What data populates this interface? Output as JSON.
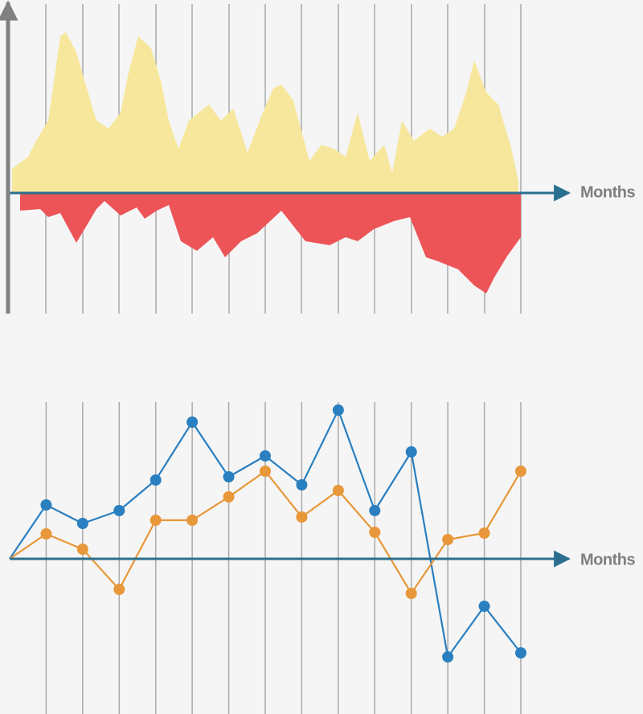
{
  "chart_data": [
    {
      "type": "area",
      "x_label": "Months",
      "xlim": [
        0,
        636
      ],
      "ylim": [
        -150,
        235
      ],
      "xticks": [
        45,
        91,
        136,
        182,
        227,
        273,
        318,
        363,
        409,
        454,
        500,
        545,
        591,
        636
      ],
      "series": [
        {
          "color": "#f7e79d",
          "x": [
            3,
            23,
            33,
            48,
            63,
            70,
            83,
            93,
            108,
            123,
            138,
            148,
            160,
            176,
            188,
            198,
            210,
            223,
            248,
            263,
            278,
            296,
            313,
            328,
            338,
            353,
            373,
            388,
            403,
            418,
            433,
            448,
            466,
            476,
            488,
            503,
            523,
            538,
            553,
            568,
            578,
            593,
            608,
            623,
            633
          ],
          "values": [
            30,
            45,
            65,
            90,
            195,
            200,
            175,
            140,
            90,
            80,
            100,
            150,
            195,
            180,
            140,
            90,
            55,
            90,
            110,
            90,
            105,
            50,
            95,
            130,
            135,
            115,
            40,
            60,
            55,
            45,
            100,
            40,
            60,
            25,
            90,
            65,
            80,
            70,
            80,
            125,
            165,
            125,
            110,
            60,
            15
          ]
        },
        {
          "color": "#ec5457",
          "x": [
            13,
            38,
            48,
            63,
            83,
            108,
            118,
            138,
            158,
            168,
            183,
            198,
            213,
            233,
            253,
            268,
            288,
            308,
            338,
            368,
            398,
            418,
            433,
            453,
            478,
            498,
            518,
            533,
            558,
            578,
            593,
            603,
            618,
            636
          ],
          "values": [
            -22,
            -20,
            -30,
            -25,
            -62,
            -20,
            -10,
            -28,
            -18,
            -32,
            -22,
            -15,
            -60,
            -72,
            -55,
            -80,
            -60,
            -50,
            -22,
            -60,
            -65,
            -55,
            -60,
            -45,
            -35,
            -30,
            -80,
            -85,
            -95,
            -115,
            -125,
            -105,
            -80,
            -55
          ]
        }
      ]
    },
    {
      "type": "line",
      "x_label": "Months",
      "x": [
        0,
        1,
        2,
        3,
        4,
        5,
        6,
        7,
        8,
        9,
        10,
        11,
        12,
        13,
        14
      ],
      "xlim": [
        0,
        14
      ],
      "ylim": [
        -193,
        195
      ],
      "xticks": [
        1,
        2,
        3,
        4,
        5,
        6,
        7,
        8,
        9,
        10,
        11,
        12,
        13,
        14
      ],
      "series": [
        {
          "color": "#2a7fc0",
          "values": [
            0,
            67,
            44,
            60,
            98,
            170,
            102,
            128,
            92,
            185,
            60,
            133,
            -122,
            -59,
            -117
          ]
        },
        {
          "color": "#e8973a",
          "values": [
            0,
            31,
            12,
            -38,
            48,
            48,
            77,
            109,
            52,
            85,
            33,
            -43,
            24,
            32,
            109
          ]
        }
      ]
    }
  ]
}
